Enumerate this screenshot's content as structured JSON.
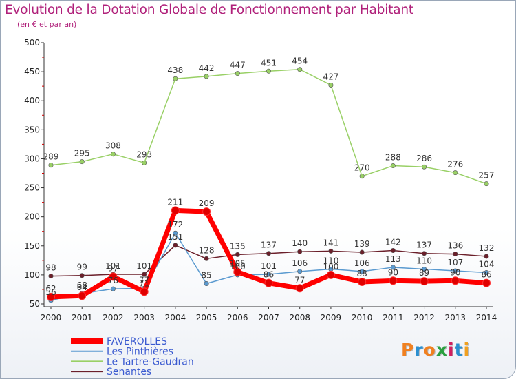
{
  "header": {
    "title": "Evolution de la Dotation Globale de Fonctionnement par Habitant",
    "subtitle": "(en € et par an)"
  },
  "logo": {
    "text": "Proxiti",
    "colors": [
      "#f08020",
      "#2a8fd0",
      "#f08020",
      "#2aa040",
      "#d02060",
      "#2a8fd0",
      "#f0a020"
    ]
  },
  "chart_data": {
    "type": "line",
    "x": [
      "2000",
      "2001",
      "2002",
      "2003",
      "2004",
      "2005",
      "2006",
      "2007",
      "2008",
      "2009",
      "2010",
      "2011",
      "2012",
      "2013",
      "2014"
    ],
    "ylim": [
      50,
      500
    ],
    "yticks": [
      50,
      100,
      150,
      200,
      250,
      300,
      350,
      400,
      450,
      500
    ],
    "grid": false,
    "legend_placement": "bottom-left",
    "series": [
      {
        "name": "FAVEROLLES",
        "color": "#ff0000",
        "values": [
          62,
          64,
          97,
          71,
          211,
          209,
          105,
          86,
          77,
          100,
          88,
          90,
          89,
          90,
          86
        ],
        "labels": [
          "62",
          "64",
          "97",
          "71",
          "211",
          "209",
          "105",
          "86",
          "77",
          "100",
          "88",
          "90",
          "89",
          "90",
          "86"
        ]
      },
      {
        "name": "Les Pinthières",
        "color": "#5a9ad0",
        "values": [
          56,
          68,
          76,
          77,
          172,
          85,
          100,
          101,
          106,
          110,
          106,
          113,
          110,
          107,
          104
        ],
        "labels": [
          "56",
          "68",
          "76",
          "77",
          "172",
          "85",
          "100",
          "101",
          "106",
          "110",
          "106",
          "113",
          "110",
          "107",
          "104"
        ]
      },
      {
        "name": "Le Tartre-Gaudran",
        "color": "#99d066",
        "values": [
          289,
          295,
          308,
          293,
          438,
          442,
          447,
          451,
          454,
          427,
          270,
          288,
          286,
          276,
          257
        ],
        "labels": [
          "289",
          "295",
          "308",
          "293",
          "438",
          "442",
          "447",
          "451",
          "454",
          "427",
          "270",
          "288",
          "286",
          "276",
          "257"
        ]
      },
      {
        "name": "Senantes",
        "color": "#6b1f2a",
        "values": [
          98,
          99,
          101,
          101,
          151,
          128,
          135,
          137,
          140,
          141,
          139,
          142,
          137,
          136,
          132
        ],
        "labels": [
          "98",
          "99",
          "101",
          "101",
          "151",
          "128",
          "135",
          "137",
          "140",
          "141",
          "139",
          "142",
          "137",
          "136",
          "132"
        ]
      }
    ]
  }
}
